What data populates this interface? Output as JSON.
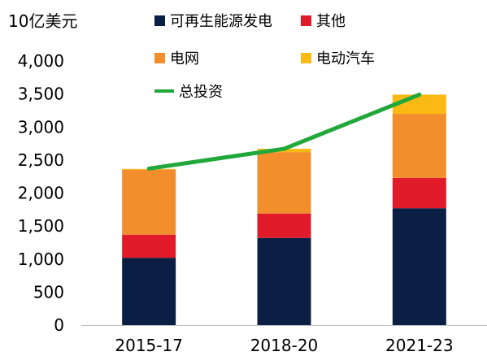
{
  "chart_data": {
    "type": "bar",
    "stacked": true,
    "ylabel": "10亿美元",
    "categories": [
      "2015-17",
      "2018-20",
      "2021-23"
    ],
    "series": [
      {
        "name": "可再生能源发电",
        "color": "#0b1f45",
        "values": [
          1020,
          1320,
          1770
        ]
      },
      {
        "name": "其他",
        "color": "#e11b2a",
        "values": [
          350,
          370,
          460
        ]
      },
      {
        "name": "电网",
        "color": "#f28e2b",
        "values": [
          985,
          930,
          970
        ]
      },
      {
        "name": "电动汽车",
        "color": "#fbb914",
        "values": [
          10,
          50,
          290
        ]
      }
    ],
    "line": {
      "name": "总投资",
      "color": "#21a83b",
      "values": [
        2370,
        2670,
        3490
      ]
    },
    "ylim": [
      0,
      4000
    ],
    "yticks": [
      "0",
      "500",
      "1,000",
      "1,500",
      "2,000",
      "2,500",
      "3,000",
      "3,500",
      "4,000"
    ],
    "legend": "top",
    "grid": false
  }
}
